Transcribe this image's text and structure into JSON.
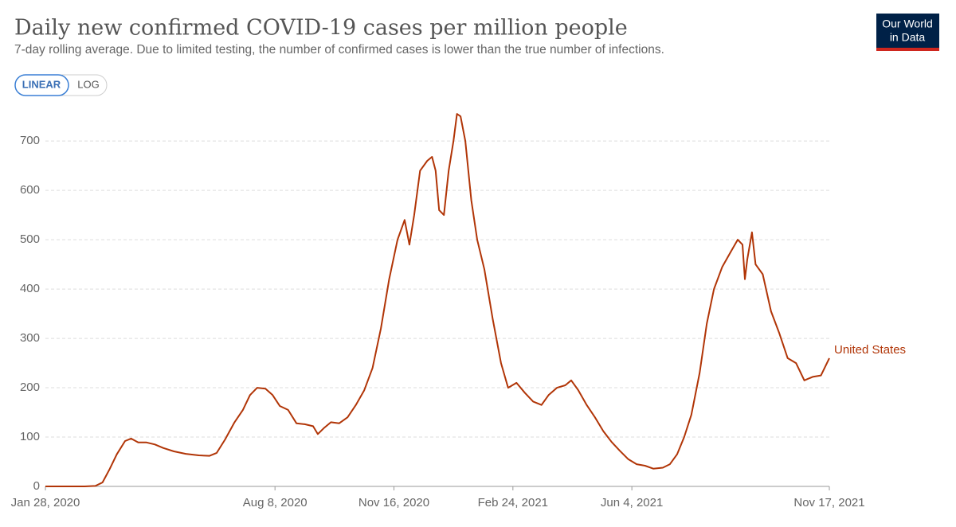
{
  "chart_data": {
    "type": "line",
    "title": "Daily new confirmed COVID-19 cases per million people",
    "subtitle": "7-day rolling average. Due to limited testing, the number of confirmed cases is lower than the true number of infections.",
    "scale_options": [
      "LINEAR",
      "LOG"
    ],
    "selected_scale": "LINEAR",
    "logo": [
      "Our World",
      "in Data"
    ],
    "x": [
      "2020-01-28",
      "2020-02-15",
      "2020-03-01",
      "2020-03-10",
      "2020-03-16",
      "2020-03-22",
      "2020-03-28",
      "2020-04-04",
      "2020-04-09",
      "2020-04-15",
      "2020-04-22",
      "2020-04-29",
      "2020-05-06",
      "2020-05-15",
      "2020-05-25",
      "2020-06-05",
      "2020-06-14",
      "2020-06-20",
      "2020-06-27",
      "2020-07-05",
      "2020-07-12",
      "2020-07-18",
      "2020-07-24",
      "2020-07-31",
      "2020-08-06",
      "2020-08-12",
      "2020-08-19",
      "2020-08-26",
      "2020-09-02",
      "2020-09-09",
      "2020-09-13",
      "2020-09-18",
      "2020-09-24",
      "2020-10-01",
      "2020-10-08",
      "2020-10-15",
      "2020-10-22",
      "2020-10-29",
      "2020-11-05",
      "2020-11-12",
      "2020-11-19",
      "2020-11-25",
      "2020-11-29",
      "2020-12-03",
      "2020-12-08",
      "2020-12-14",
      "2020-12-18",
      "2020-12-21",
      "2020-12-24",
      "2020-12-28",
      "2021-01-01",
      "2021-01-05",
      "2021-01-08",
      "2021-01-11",
      "2021-01-15",
      "2021-01-20",
      "2021-01-25",
      "2021-01-31",
      "2021-02-07",
      "2021-02-14",
      "2021-02-20",
      "2021-02-27",
      "2021-03-06",
      "2021-03-13",
      "2021-03-20",
      "2021-03-26",
      "2021-04-02",
      "2021-04-09",
      "2021-04-14",
      "2021-04-20",
      "2021-04-27",
      "2021-05-04",
      "2021-05-11",
      "2021-05-18",
      "2021-05-25",
      "2021-06-01",
      "2021-06-08",
      "2021-06-15",
      "2021-06-22",
      "2021-06-30",
      "2021-07-06",
      "2021-07-12",
      "2021-07-18",
      "2021-07-24",
      "2021-07-31",
      "2021-08-06",
      "2021-08-12",
      "2021-08-19",
      "2021-08-26",
      "2021-09-01",
      "2021-09-05",
      "2021-09-07",
      "2021-09-09",
      "2021-09-13",
      "2021-09-16",
      "2021-09-22",
      "2021-09-29",
      "2021-10-06",
      "2021-10-13",
      "2021-10-20",
      "2021-10-27",
      "2021-11-03",
      "2021-11-10",
      "2021-11-17"
    ],
    "series": [
      {
        "name": "United States",
        "color": "#b13507",
        "values": [
          0,
          0,
          0,
          1,
          8,
          35,
          65,
          92,
          97,
          89,
          89,
          85,
          78,
          71,
          66,
          63,
          62,
          68,
          95,
          130,
          155,
          185,
          200,
          198,
          185,
          163,
          155,
          128,
          126,
          122,
          106,
          118,
          130,
          128,
          140,
          165,
          195,
          240,
          320,
          420,
          500,
          540,
          490,
          550,
          640,
          660,
          668,
          640,
          560,
          550,
          640,
          700,
          755,
          750,
          700,
          580,
          500,
          440,
          340,
          250,
          200,
          210,
          190,
          172,
          165,
          185,
          200,
          205,
          215,
          195,
          165,
          140,
          112,
          90,
          72,
          55,
          45,
          42,
          36,
          38,
          45,
          65,
          100,
          145,
          230,
          330,
          400,
          445,
          475,
          500,
          490,
          420,
          460,
          515,
          450,
          430,
          355,
          310,
          260,
          250,
          215,
          222,
          225,
          260
        ]
      }
    ],
    "xlim": [
      "2020-01-28",
      "2021-11-17"
    ],
    "xticks": [
      {
        "value": "2020-01-28",
        "label": "Jan 28, 2020"
      },
      {
        "value": "2020-08-08",
        "label": "Aug 8, 2020"
      },
      {
        "value": "2020-11-16",
        "label": "Nov 16, 2020"
      },
      {
        "value": "2021-02-24",
        "label": "Feb 24, 2021"
      },
      {
        "value": "2021-06-04",
        "label": "Jun 4, 2021"
      },
      {
        "value": "2021-11-17",
        "label": "Nov 17, 2021"
      }
    ],
    "ylim": [
      0,
      760
    ],
    "yticks": [
      0,
      100,
      200,
      300,
      400,
      500,
      600,
      700
    ],
    "grid": true
  }
}
